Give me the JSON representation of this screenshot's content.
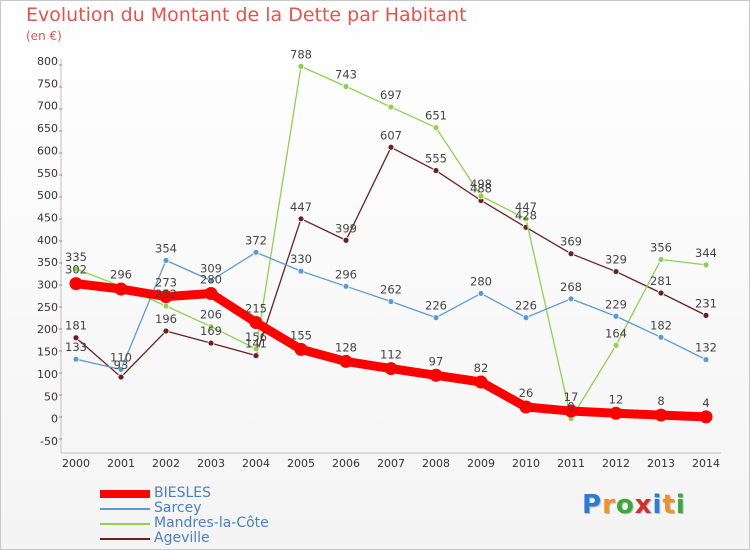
{
  "title": "Evolution du Montant de la Dette par Habitant",
  "unit": "(en €)",
  "logo": "Proxiti",
  "chart_data": {
    "type": "line",
    "title": "Evolution du Montant de la Dette par Habitant",
    "ylabel": "(en €)",
    "xlabel": "",
    "ylim": [
      -50,
      800
    ],
    "yticks": [
      -50,
      0,
      50,
      100,
      150,
      200,
      250,
      300,
      350,
      400,
      450,
      500,
      550,
      600,
      650,
      700,
      750,
      800
    ],
    "grid": false,
    "legend": "bottom-left",
    "x": [
      "2000",
      "2001",
      "2002",
      "2003",
      "2004",
      "2005",
      "2006",
      "2007",
      "2008",
      "2009",
      "2010",
      "2011",
      "2012",
      "2013",
      "2014"
    ],
    "series": [
      {
        "name": "BIESLES",
        "color": "#ff0000",
        "values": [
          302,
          290,
          273,
          280,
          215,
          155,
          128,
          112,
          97,
          82,
          26,
          17,
          12,
          8,
          4
        ],
        "labels": [
          "302",
          "",
          "273",
          "280",
          "215",
          "155",
          "128",
          "112",
          "97",
          "82",
          "26",
          "17",
          "12",
          "8",
          "4"
        ]
      },
      {
        "name": "Sarcey",
        "color": "#5b9bd5",
        "values": [
          133,
          110,
          354,
          309,
          372,
          330,
          296,
          262,
          226,
          280,
          226,
          268,
          229,
          182,
          132
        ],
        "labels": [
          "133",
          "110",
          "354",
          "309",
          "372",
          "330",
          "296",
          "262",
          "226",
          "280",
          "226",
          "268",
          "229",
          "182",
          "132"
        ]
      },
      {
        "name": "Mandres-la-Côte",
        "color": "#8fd14f",
        "values": [
          335,
          296,
          252,
          206,
          156,
          788,
          743,
          697,
          651,
          498,
          447,
          0,
          164,
          356,
          344
        ],
        "labels": [
          "335",
          "296",
          "252",
          "206",
          "156",
          "788",
          "743",
          "697",
          "651",
          "498",
          "447",
          "0",
          "164",
          "356",
          "344"
        ]
      },
      {
        "name": "Ageville",
        "color": "#6b1f1f",
        "values": [
          181,
          93,
          196,
          169,
          141,
          447,
          399,
          607,
          555,
          488,
          428,
          369,
          329,
          281,
          231
        ],
        "labels": [
          "181",
          "93",
          "196",
          "169",
          "141",
          "447",
          "399",
          "607",
          "555",
          "488",
          "428",
          "369",
          "329",
          "281",
          "231"
        ]
      }
    ]
  }
}
